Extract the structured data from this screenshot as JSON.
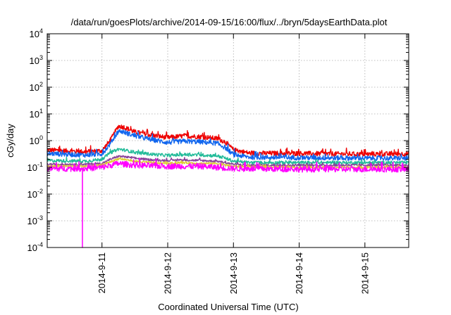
{
  "chart_data": {
    "type": "line",
    "title": "/data/run/goesPlots/archive/2014-09-15/16:00/flux/../bryn/5daysEarthData.plot",
    "xlabel": "Coordinated Universal Time (UTC)",
    "ylabel": "cGy/day",
    "y_scale": "log",
    "ylim": [
      0.0001,
      10000
    ],
    "xlim": [
      "2014-09-10T04:00",
      "2014-09-15T16:00"
    ],
    "x_ticks": [
      "2014-9-11",
      "2014-9-12",
      "2014-9-13",
      "2014-9-14",
      "2014-9-15"
    ],
    "y_ticks": [
      {
        "base": "10",
        "exp": "-4",
        "value": 0.0001
      },
      {
        "base": "10",
        "exp": "-3",
        "value": 0.001
      },
      {
        "base": "10",
        "exp": "-2",
        "value": 0.01
      },
      {
        "base": "10",
        "exp": "-1",
        "value": 0.1
      },
      {
        "base": "10",
        "exp": "0",
        "value": 1
      },
      {
        "base": "10",
        "exp": "1",
        "value": 10
      },
      {
        "base": "10",
        "exp": "2",
        "value": 100
      },
      {
        "base": "10",
        "exp": "3",
        "value": 1000
      },
      {
        "base": "10",
        "exp": "4",
        "value": 10000
      }
    ],
    "grid": true,
    "legend": "none",
    "series": [
      {
        "color": "#ee0000",
        "noise": 0.09,
        "x": [
          "2014-09-10T04:00",
          "2014-09-10T18:00",
          "2014-09-11T00:00",
          "2014-09-11T03:00",
          "2014-09-11T06:00",
          "2014-09-11T08:00",
          "2014-09-11T12:00",
          "2014-09-11T18:00",
          "2014-09-12T00:00",
          "2014-09-12T06:00",
          "2014-09-12T12:00",
          "2014-09-12T18:00",
          "2014-09-12T21:00",
          "2014-09-13T00:00",
          "2014-09-13T06:00",
          "2014-09-14T00:00",
          "2014-09-15T00:00",
          "2014-09-15T16:00"
        ],
        "y": [
          0.45,
          0.38,
          0.42,
          1.0,
          3.5,
          3.2,
          2.1,
          1.6,
          1.3,
          1.5,
          1.4,
          1.2,
          0.9,
          0.45,
          0.34,
          0.33,
          0.31,
          0.32
        ]
      },
      {
        "color": "#1166ee",
        "noise": 0.09,
        "x": [
          "2014-09-10T04:00",
          "2014-09-10T18:00",
          "2014-09-11T00:00",
          "2014-09-11T03:00",
          "2014-09-11T06:00",
          "2014-09-11T08:00",
          "2014-09-11T12:00",
          "2014-09-11T18:00",
          "2014-09-12T00:00",
          "2014-09-12T06:00",
          "2014-09-12T12:00",
          "2014-09-12T18:00",
          "2014-09-12T21:00",
          "2014-09-13T00:00",
          "2014-09-13T06:00",
          "2014-09-14T00:00",
          "2014-09-15T00:00",
          "2014-09-15T16:00"
        ],
        "y": [
          0.33,
          0.29,
          0.32,
          0.75,
          2.3,
          2.1,
          1.5,
          1.1,
          0.85,
          0.95,
          0.9,
          0.8,
          0.55,
          0.3,
          0.24,
          0.23,
          0.22,
          0.22
        ]
      },
      {
        "color": "#22bb99",
        "noise": 0.06,
        "x": [
          "2014-09-10T04:00",
          "2014-09-10T18:00",
          "2014-09-11T00:00",
          "2014-09-11T03:00",
          "2014-09-11T06:00",
          "2014-09-11T08:00",
          "2014-09-11T12:00",
          "2014-09-11T18:00",
          "2014-09-12T00:00",
          "2014-09-12T06:00",
          "2014-09-12T12:00",
          "2014-09-12T18:00",
          "2014-09-12T21:00",
          "2014-09-13T00:00",
          "2014-09-13T06:00",
          "2014-09-14T00:00",
          "2014-09-15T00:00",
          "2014-09-15T16:00"
        ],
        "y": [
          0.18,
          0.17,
          0.2,
          0.35,
          0.48,
          0.45,
          0.36,
          0.31,
          0.28,
          0.3,
          0.29,
          0.27,
          0.22,
          0.17,
          0.15,
          0.15,
          0.15,
          0.15
        ]
      },
      {
        "color": "#884499",
        "noise": 0.04,
        "x": [
          "2014-09-10T04:00",
          "2014-09-10T18:00",
          "2014-09-11T00:00",
          "2014-09-11T03:00",
          "2014-09-11T06:00",
          "2014-09-11T08:00",
          "2014-09-11T12:00",
          "2014-09-11T18:00",
          "2014-09-12T00:00",
          "2014-09-12T06:00",
          "2014-09-12T12:00",
          "2014-09-12T18:00",
          "2014-09-12T21:00",
          "2014-09-13T00:00",
          "2014-09-13T06:00",
          "2014-09-14T00:00",
          "2014-09-15T00:00",
          "2014-09-15T16:00"
        ],
        "y": [
          0.13,
          0.13,
          0.14,
          0.2,
          0.26,
          0.25,
          0.22,
          0.19,
          0.18,
          0.19,
          0.18,
          0.17,
          0.15,
          0.13,
          0.12,
          0.12,
          0.12,
          0.12
        ]
      },
      {
        "color": "#ddcc33",
        "noise": 0.04,
        "x": [
          "2014-09-10T04:00",
          "2014-09-10T18:00",
          "2014-09-11T00:00",
          "2014-09-11T03:00",
          "2014-09-11T06:00",
          "2014-09-11T08:00",
          "2014-09-11T12:00",
          "2014-09-11T18:00",
          "2014-09-12T00:00",
          "2014-09-12T06:00",
          "2014-09-12T12:00",
          "2014-09-12T18:00",
          "2014-09-12T21:00",
          "2014-09-13T00:00",
          "2014-09-13T06:00",
          "2014-09-14T00:00",
          "2014-09-15T00:00",
          "2014-09-15T16:00"
        ],
        "y": [
          0.11,
          0.11,
          0.12,
          0.16,
          0.21,
          0.2,
          0.17,
          0.15,
          0.14,
          0.15,
          0.14,
          0.14,
          0.12,
          0.11,
          0.105,
          0.1,
          0.1,
          0.1
        ]
      },
      {
        "color": "#ff00ff",
        "noise": 0.11,
        "x": [
          "2014-09-10T04:00",
          "2014-09-10T16:00",
          "2014-09-10T16:50",
          "2014-09-10T16:51",
          "2014-09-10T16:52",
          "2014-09-10T16:53",
          "2014-09-10T18:00",
          "2014-09-11T00:00",
          "2014-09-11T06:00",
          "2014-09-11T12:00",
          "2014-09-12T00:00",
          "2014-09-12T12:00",
          "2014-09-13T00:00",
          "2014-09-14T00:00",
          "2014-09-15T00:00",
          "2014-09-15T16:00"
        ],
        "y": [
          0.09,
          0.09,
          0.09,
          0.0001,
          0.0001,
          0.09,
          0.09,
          0.1,
          0.14,
          0.12,
          0.11,
          0.11,
          0.09,
          0.085,
          0.085,
          0.085
        ]
      }
    ]
  }
}
